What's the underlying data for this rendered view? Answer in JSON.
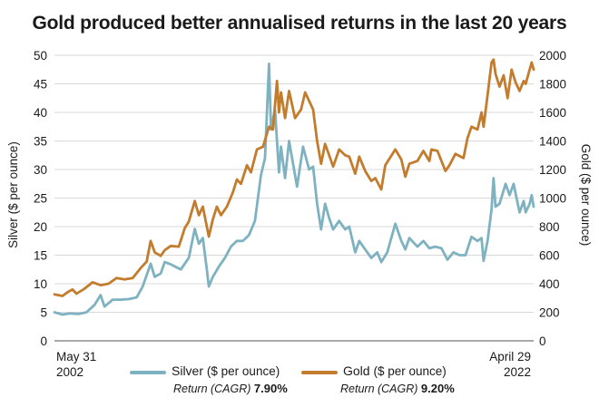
{
  "title": "Gold produced better annualised returns in the last 20 years",
  "colors": {
    "silver": "#7fb2c1",
    "gold": "#c27c2c",
    "grid": "#d9d9d9"
  },
  "date_start": {
    "line1": "May 31",
    "line2": "2002"
  },
  "date_end": {
    "line1": "April 29",
    "line2": "2022"
  },
  "legend": {
    "silver": {
      "name": "Silver",
      "unit": "($ per ounce)",
      "return_label": "Return (CAGR)",
      "return_value": "7.90%"
    },
    "gold": {
      "name": "Gold",
      "unit": "($ per ounce)",
      "return_label": "Return (CAGR)",
      "return_value": "9.20%"
    }
  },
  "chart_data": {
    "type": "line",
    "title": "Gold produced better annualised returns in the last 20 years",
    "x_start": "2002-05",
    "x_end": "2022-04",
    "left_axis": {
      "label": "Silver ($ per ounce)",
      "range": [
        0,
        50
      ],
      "ticks": [
        "0",
        "5",
        "10",
        "15",
        "20",
        "25",
        "30",
        "35",
        "40",
        "45",
        "50"
      ]
    },
    "right_axis": {
      "label": "Gold ($ per ounce)",
      "range": [
        0,
        2000
      ],
      "ticks": [
        "0",
        "200",
        "400",
        "600",
        "800",
        "1000",
        "1200",
        "1400",
        "1600",
        "1800",
        "2000"
      ]
    },
    "grid": true,
    "series": [
      {
        "name": "Silver",
        "axis": "left",
        "points": [
          [
            "2002-05",
            5.0
          ],
          [
            "2002-09",
            4.6
          ],
          [
            "2003-01",
            4.8
          ],
          [
            "2003-05",
            4.7
          ],
          [
            "2003-09",
            5.0
          ],
          [
            "2004-01",
            6.3
          ],
          [
            "2004-04",
            8.0
          ],
          [
            "2004-06",
            6.0
          ],
          [
            "2004-10",
            7.2
          ],
          [
            "2005-02",
            7.2
          ],
          [
            "2005-06",
            7.3
          ],
          [
            "2005-10",
            7.6
          ],
          [
            "2006-01",
            9.5
          ],
          [
            "2006-05",
            13.5
          ],
          [
            "2006-07",
            11.2
          ],
          [
            "2006-10",
            11.8
          ],
          [
            "2006-12",
            13.8
          ],
          [
            "2007-03",
            13.4
          ],
          [
            "2007-08",
            12.5
          ],
          [
            "2007-12",
            14.5
          ],
          [
            "2008-03",
            19.6
          ],
          [
            "2008-05",
            17.0
          ],
          [
            "2008-07",
            18.0
          ],
          [
            "2008-09",
            12.5
          ],
          [
            "2008-10",
            9.5
          ],
          [
            "2008-12",
            11.2
          ],
          [
            "2009-03",
            13.0
          ],
          [
            "2009-06",
            14.5
          ],
          [
            "2009-09",
            16.5
          ],
          [
            "2009-12",
            17.5
          ],
          [
            "2010-03",
            17.5
          ],
          [
            "2010-06",
            18.5
          ],
          [
            "2010-09",
            21.0
          ],
          [
            "2010-12",
            29.0
          ],
          [
            "2011-02",
            32.0
          ],
          [
            "2011-04",
            48.5
          ],
          [
            "2011-05",
            37.0
          ],
          [
            "2011-07",
            40.5
          ],
          [
            "2011-09",
            29.5
          ],
          [
            "2011-10",
            34.0
          ],
          [
            "2011-12",
            28.5
          ],
          [
            "2012-02",
            35.0
          ],
          [
            "2012-04",
            31.0
          ],
          [
            "2012-06",
            27.0
          ],
          [
            "2012-09",
            34.0
          ],
          [
            "2012-12",
            30.0
          ],
          [
            "2013-02",
            30.5
          ],
          [
            "2013-04",
            24.0
          ],
          [
            "2013-06",
            19.5
          ],
          [
            "2013-08",
            24.0
          ],
          [
            "2013-10",
            21.5
          ],
          [
            "2013-12",
            19.5
          ],
          [
            "2014-03",
            21.0
          ],
          [
            "2014-06",
            19.5
          ],
          [
            "2014-08",
            20.0
          ],
          [
            "2014-11",
            15.5
          ],
          [
            "2015-01",
            17.5
          ],
          [
            "2015-04",
            16.0
          ],
          [
            "2015-07",
            14.5
          ],
          [
            "2015-10",
            15.5
          ],
          [
            "2015-12",
            13.8
          ],
          [
            "2016-03",
            15.5
          ],
          [
            "2016-07",
            20.5
          ],
          [
            "2016-10",
            17.5
          ],
          [
            "2016-12",
            16.0
          ],
          [
            "2017-02",
            18.0
          ],
          [
            "2017-06",
            16.5
          ],
          [
            "2017-09",
            17.5
          ],
          [
            "2017-12",
            16.2
          ],
          [
            "2018-03",
            16.5
          ],
          [
            "2018-06",
            16.2
          ],
          [
            "2018-09",
            14.2
          ],
          [
            "2018-12",
            15.5
          ],
          [
            "2019-03",
            15.0
          ],
          [
            "2019-06",
            15.0
          ],
          [
            "2019-09",
            18.2
          ],
          [
            "2019-12",
            17.5
          ],
          [
            "2020-02",
            18.0
          ],
          [
            "2020-03",
            14.0
          ],
          [
            "2020-05",
            17.5
          ],
          [
            "2020-07",
            23.0
          ],
          [
            "2020-08",
            28.5
          ],
          [
            "2020-09",
            23.5
          ],
          [
            "2020-11",
            24.0
          ],
          [
            "2021-02",
            27.5
          ],
          [
            "2021-04",
            25.5
          ],
          [
            "2021-06",
            27.5
          ],
          [
            "2021-09",
            22.5
          ],
          [
            "2021-11",
            24.5
          ],
          [
            "2021-12",
            22.5
          ],
          [
            "2022-02",
            24.0
          ],
          [
            "2022-03",
            25.5
          ],
          [
            "2022-04",
            23.5
          ]
        ]
      },
      {
        "name": "Gold",
        "axis": "right",
        "points": [
          [
            "2002-05",
            325
          ],
          [
            "2002-09",
            314
          ],
          [
            "2002-12",
            345
          ],
          [
            "2003-02",
            360
          ],
          [
            "2003-04",
            330
          ],
          [
            "2003-08",
            365
          ],
          [
            "2003-12",
            410
          ],
          [
            "2004-04",
            390
          ],
          [
            "2004-08",
            400
          ],
          [
            "2004-12",
            440
          ],
          [
            "2005-04",
            430
          ],
          [
            "2005-08",
            440
          ],
          [
            "2005-12",
            510
          ],
          [
            "2006-03",
            555
          ],
          [
            "2006-05",
            700
          ],
          [
            "2006-07",
            620
          ],
          [
            "2006-10",
            595
          ],
          [
            "2006-12",
            635
          ],
          [
            "2007-03",
            665
          ],
          [
            "2007-07",
            660
          ],
          [
            "2007-10",
            790
          ],
          [
            "2007-12",
            835
          ],
          [
            "2008-03",
            980
          ],
          [
            "2008-05",
            880
          ],
          [
            "2008-07",
            940
          ],
          [
            "2008-10",
            730
          ],
          [
            "2008-12",
            850
          ],
          [
            "2009-02",
            940
          ],
          [
            "2009-04",
            880
          ],
          [
            "2009-07",
            940
          ],
          [
            "2009-10",
            1040
          ],
          [
            "2009-12",
            1130
          ],
          [
            "2010-02",
            1100
          ],
          [
            "2010-05",
            1230
          ],
          [
            "2010-07",
            1180
          ],
          [
            "2010-10",
            1340
          ],
          [
            "2011-01",
            1360
          ],
          [
            "2011-04",
            1500
          ],
          [
            "2011-06",
            1480
          ],
          [
            "2011-08",
            1820
          ],
          [
            "2011-09",
            1600
          ],
          [
            "2011-10",
            1740
          ],
          [
            "2011-12",
            1560
          ],
          [
            "2012-02",
            1750
          ],
          [
            "2012-05",
            1560
          ],
          [
            "2012-08",
            1620
          ],
          [
            "2012-10",
            1740
          ],
          [
            "2012-12",
            1680
          ],
          [
            "2013-02",
            1620
          ],
          [
            "2013-04",
            1400
          ],
          [
            "2013-06",
            1240
          ],
          [
            "2013-08",
            1380
          ],
          [
            "2013-10",
            1300
          ],
          [
            "2013-12",
            1220
          ],
          [
            "2014-03",
            1340
          ],
          [
            "2014-06",
            1300
          ],
          [
            "2014-08",
            1290
          ],
          [
            "2014-11",
            1170
          ],
          [
            "2015-01",
            1290
          ],
          [
            "2015-04",
            1190
          ],
          [
            "2015-07",
            1120
          ],
          [
            "2015-09",
            1140
          ],
          [
            "2015-12",
            1060
          ],
          [
            "2016-02",
            1230
          ],
          [
            "2016-07",
            1340
          ],
          [
            "2016-10",
            1270
          ],
          [
            "2016-12",
            1150
          ],
          [
            "2017-02",
            1240
          ],
          [
            "2017-06",
            1260
          ],
          [
            "2017-09",
            1330
          ],
          [
            "2017-12",
            1260
          ],
          [
            "2018-01",
            1340
          ],
          [
            "2018-04",
            1330
          ],
          [
            "2018-08",
            1190
          ],
          [
            "2018-10",
            1230
          ],
          [
            "2019-01",
            1310
          ],
          [
            "2019-05",
            1280
          ],
          [
            "2019-07",
            1420
          ],
          [
            "2019-09",
            1500
          ],
          [
            "2019-12",
            1480
          ],
          [
            "2020-02",
            1600
          ],
          [
            "2020-03",
            1500
          ],
          [
            "2020-05",
            1720
          ],
          [
            "2020-07",
            1950
          ],
          [
            "2020-08",
            1970
          ],
          [
            "2020-09",
            1870
          ],
          [
            "2020-11",
            1780
          ],
          [
            "2021-01",
            1860
          ],
          [
            "2021-03",
            1700
          ],
          [
            "2021-05",
            1900
          ],
          [
            "2021-07",
            1810
          ],
          [
            "2021-09",
            1750
          ],
          [
            "2021-11",
            1820
          ],
          [
            "2021-12",
            1800
          ],
          [
            "2022-02",
            1900
          ],
          [
            "2022-03",
            1950
          ],
          [
            "2022-04",
            1900
          ]
        ]
      }
    ]
  }
}
